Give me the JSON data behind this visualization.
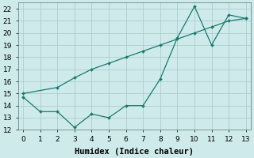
{
  "line1_x": [
    0,
    1,
    2,
    3,
    4,
    5,
    6,
    7,
    8,
    9,
    10,
    11,
    12,
    13
  ],
  "line1_y": [
    14.7,
    13.5,
    13.5,
    12.2,
    13.3,
    13.0,
    14.0,
    14.0,
    16.2,
    19.6,
    22.2,
    19.0,
    21.5,
    21.2
  ],
  "line2_x": [
    0,
    2,
    3,
    4,
    5,
    6,
    7,
    8,
    9,
    10,
    11,
    12,
    13
  ],
  "line2_y": [
    15.0,
    15.5,
    16.3,
    17.0,
    17.5,
    18.0,
    18.5,
    19.0,
    19.5,
    20.0,
    20.5,
    21.0,
    21.2
  ],
  "line_color": "#1a7a6e",
  "bg_color": "#ceeaea",
  "grid_color": "#aecece",
  "xlabel": "Humidex (Indice chaleur)",
  "ylim": [
    12,
    22.5
  ],
  "xlim": [
    -0.3,
    13.3
  ],
  "yticks": [
    12,
    13,
    14,
    15,
    16,
    17,
    18,
    19,
    20,
    21,
    22
  ],
  "xticks": [
    0,
    1,
    2,
    3,
    4,
    5,
    6,
    7,
    8,
    9,
    10,
    11,
    12,
    13
  ],
  "tick_fontsize": 6.5,
  "xlabel_fontsize": 7.5
}
